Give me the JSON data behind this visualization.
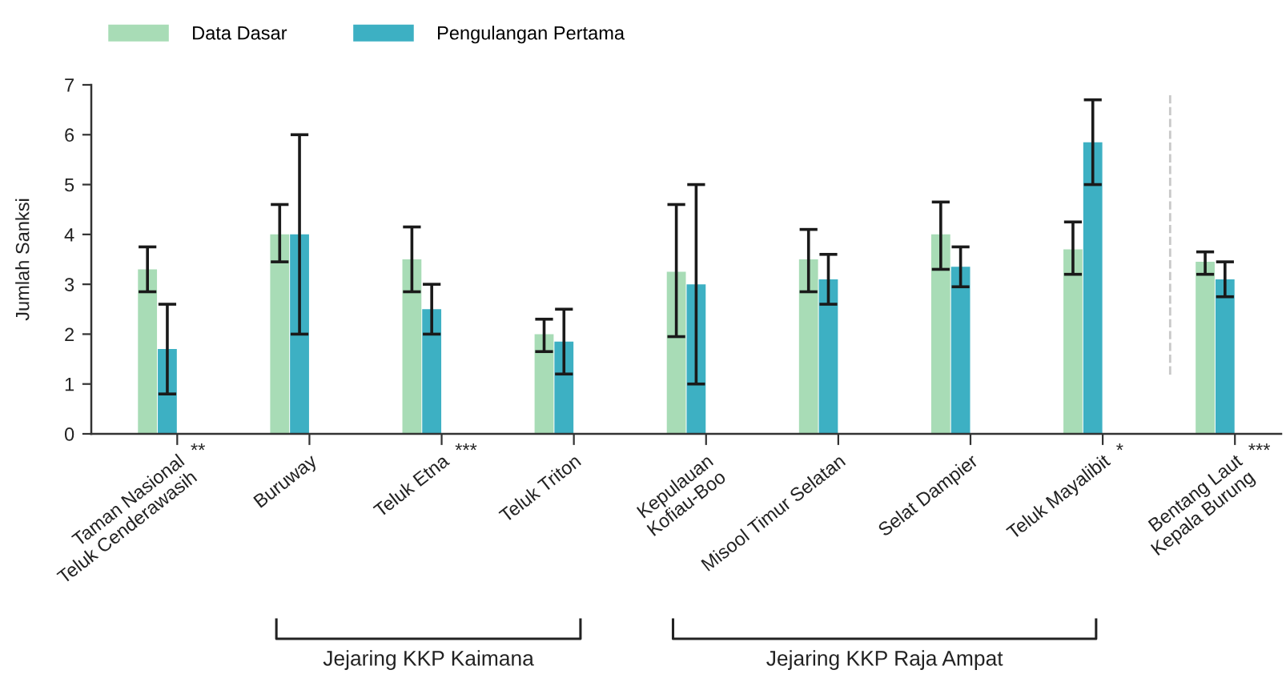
{
  "chart_data": {
    "type": "bar",
    "categories": [
      "Taman Nasional\nTeluk Cenderawasih",
      "Buruway",
      "Teluk Etna",
      "Teluk Triton",
      "Kepulauan\nKofiau-Boo",
      "Misool Timur Selatan",
      "Selat Dampier",
      "Teluk Mayalibit",
      "Bentang Laut\nKepala Burung"
    ],
    "series": [
      {
        "name": "Data Dasar",
        "color": "#a8dcb6",
        "values": [
          3.3,
          4.0,
          3.5,
          2.0,
          3.25,
          3.5,
          4.0,
          3.7,
          3.45
        ],
        "errors": [
          [
            2.85,
            3.75
          ],
          [
            3.45,
            4.6
          ],
          [
            2.85,
            4.15
          ],
          [
            1.65,
            2.3
          ],
          [
            1.95,
            4.6
          ],
          [
            2.85,
            4.1
          ],
          [
            3.3,
            4.65
          ],
          [
            3.2,
            4.25
          ],
          [
            3.2,
            3.65
          ]
        ]
      },
      {
        "name": "Pengulangan Pertama",
        "color": "#3db0c3",
        "values": [
          1.7,
          4.0,
          2.5,
          1.85,
          3.0,
          3.1,
          3.35,
          5.85,
          3.1
        ],
        "errors": [
          [
            0.8,
            2.6
          ],
          [
            2.0,
            6.0
          ],
          [
            2.0,
            3.0
          ],
          [
            1.2,
            2.5
          ],
          [
            1.0,
            5.0
          ],
          [
            2.6,
            3.6
          ],
          [
            2.95,
            3.75
          ],
          [
            5.0,
            6.7
          ],
          [
            2.75,
            3.45
          ]
        ]
      }
    ],
    "ylabel": "Jumlah Sanksi",
    "ylim": [
      0,
      7
    ],
    "yticks": [
      0,
      1,
      2,
      3,
      4,
      5,
      6,
      7
    ],
    "legend": "top left",
    "annotations": [
      "**",
      "***",
      "*",
      "***",
      "Jejaring KKP Kaimana",
      "Jejaring KKP Raja Ampat"
    ]
  }
}
